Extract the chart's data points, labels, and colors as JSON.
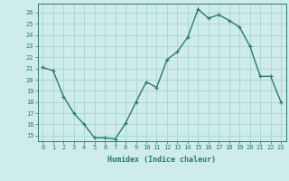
{
  "x": [
    0,
    1,
    2,
    3,
    4,
    5,
    6,
    7,
    8,
    9,
    10,
    11,
    12,
    13,
    14,
    15,
    16,
    17,
    18,
    19,
    20,
    21,
    22,
    23
  ],
  "y": [
    21.1,
    20.8,
    18.5,
    17.0,
    16.0,
    14.8,
    14.8,
    14.7,
    16.1,
    18.0,
    19.8,
    19.3,
    21.8,
    22.5,
    23.8,
    26.3,
    25.5,
    25.8,
    25.3,
    24.7,
    23.0,
    20.3,
    20.3,
    18.0
  ],
  "line_color": "#2d7a6a",
  "marker": "+",
  "marker_size": 3.5,
  "marker_lw": 0.9,
  "bg_color": "#ceecea",
  "grid_color": "#aad4d0",
  "xlabel": "Humidex (Indice chaleur)",
  "ylabel_ticks": [
    15,
    16,
    17,
    18,
    19,
    20,
    21,
    22,
    23,
    24,
    25,
    26
  ],
  "xlim": [
    -0.5,
    23.5
  ],
  "ylim": [
    14.5,
    26.8
  ],
  "tick_fontsize": 5.0,
  "xlabel_fontsize": 6.0,
  "linewidth": 1.0
}
